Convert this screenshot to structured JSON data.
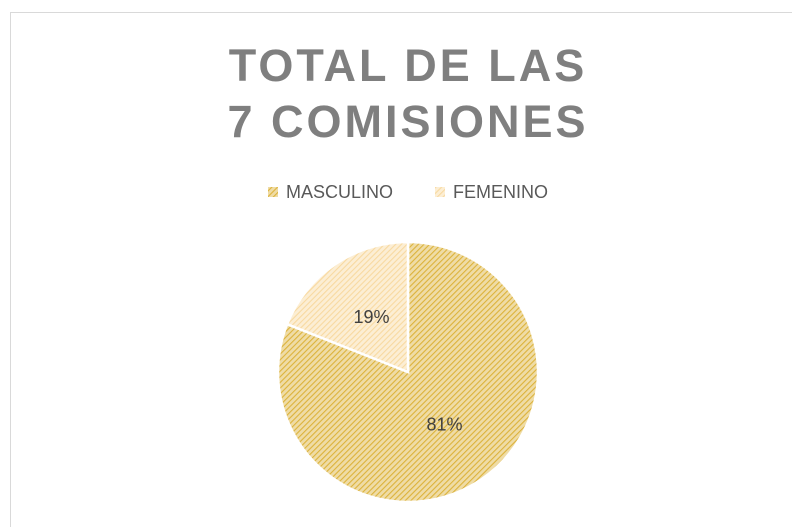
{
  "chart_data": {
    "type": "pie",
    "title": "TOTAL DE LAS 7 COMISIONES",
    "categories": [
      "MASCULINO",
      "FEMENINO"
    ],
    "values": [
      81,
      19
    ],
    "value_labels": [
      "81%",
      "19%"
    ],
    "colors": [
      "#dcb23a",
      "#f8d9a0"
    ],
    "legend": "top"
  }
}
